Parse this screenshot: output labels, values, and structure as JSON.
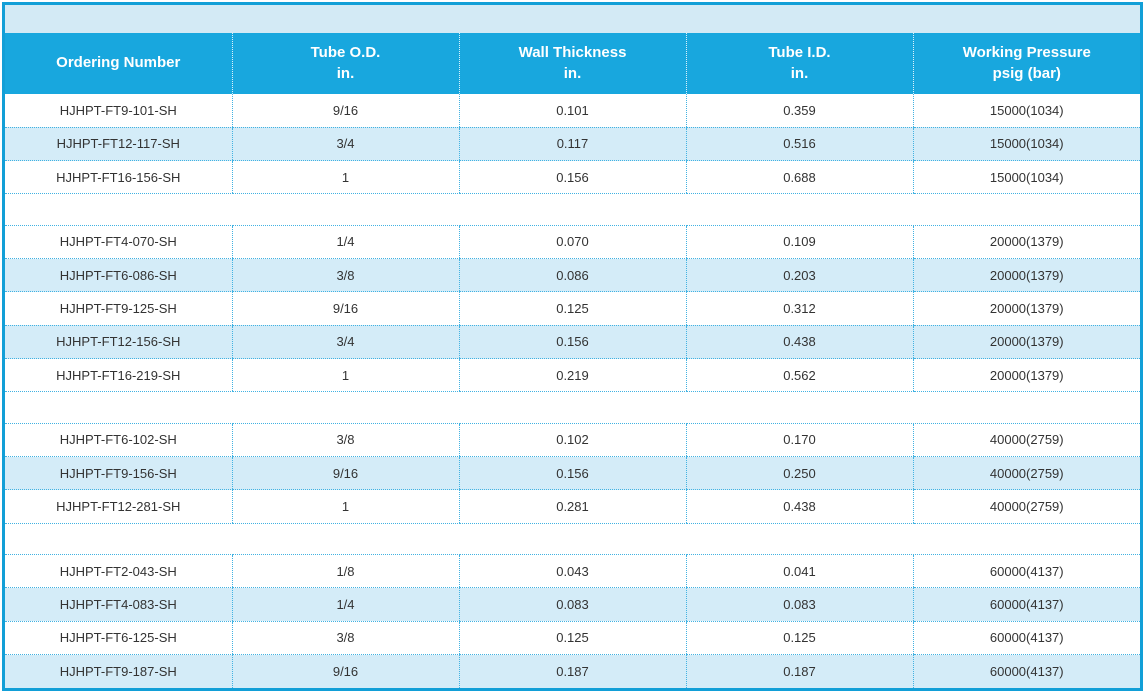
{
  "colors": {
    "header_bg": "#18a7de",
    "border": "#129fd7",
    "alt_row_bg": "#d4ecf8",
    "top_band_bg": "#d3eaf5",
    "dotted": "#41b2e2",
    "body_text": "#333333",
    "header_text": "#ffffff"
  },
  "table": {
    "column_keys": [
      "ordering-number",
      "tube-od",
      "wall-thickness",
      "tube-id",
      "working-pressure"
    ],
    "columns": [
      {
        "label": "Ordering Number",
        "sub": ""
      },
      {
        "label": "Tube O.D.",
        "sub": "in."
      },
      {
        "label": "Wall Thickness",
        "sub": "in."
      },
      {
        "label": "Tube I.D.",
        "sub": "in."
      },
      {
        "label": "Working Pressure",
        "sub": "psig (bar)"
      }
    ],
    "groups": [
      {
        "rows": [
          [
            "HJHPT-FT9-101-SH",
            "9/16",
            "0.101",
            "0.359",
            "15000(1034)"
          ],
          [
            "HJHPT-FT12-117-SH",
            "3/4",
            "0.117",
            "0.516",
            "15000(1034)"
          ],
          [
            "HJHPT-FT16-156-SH",
            "1",
            "0.156",
            "0.688",
            "15000(1034)"
          ]
        ]
      },
      {
        "rows": [
          [
            "HJHPT-FT4-070-SH",
            "1/4",
            "0.070",
            "0.109",
            "20000(1379)"
          ],
          [
            "HJHPT-FT6-086-SH",
            "3/8",
            "0.086",
            "0.203",
            "20000(1379)"
          ],
          [
            "HJHPT-FT9-125-SH",
            "9/16",
            "0.125",
            "0.312",
            "20000(1379)"
          ],
          [
            "HJHPT-FT12-156-SH",
            "3/4",
            "0.156",
            "0.438",
            "20000(1379)"
          ],
          [
            "HJHPT-FT16-219-SH",
            "1",
            "0.219",
            "0.562",
            "20000(1379)"
          ]
        ]
      },
      {
        "rows": [
          [
            "HJHPT-FT6-102-SH",
            "3/8",
            "0.102",
            "0.170",
            "40000(2759)"
          ],
          [
            "HJHPT-FT9-156-SH",
            "9/16",
            "0.156",
            "0.250",
            "40000(2759)"
          ],
          [
            "HJHPT-FT12-281-SH",
            "1",
            "0.281",
            "0.438",
            "40000(2759)"
          ]
        ]
      },
      {
        "rows": [
          [
            "HJHPT-FT2-043-SH",
            "1/8",
            "0.043",
            "0.041",
            "60000(4137)"
          ],
          [
            "HJHPT-FT4-083-SH",
            "1/4",
            "0.083",
            "0.083",
            "60000(4137)"
          ],
          [
            "HJHPT-FT6-125-SH",
            "3/8",
            "0.125",
            "0.125",
            "60000(4137)"
          ],
          [
            "HJHPT-FT9-187-SH",
            "9/16",
            "0.187",
            "0.187",
            "60000(4137)"
          ]
        ]
      }
    ]
  }
}
